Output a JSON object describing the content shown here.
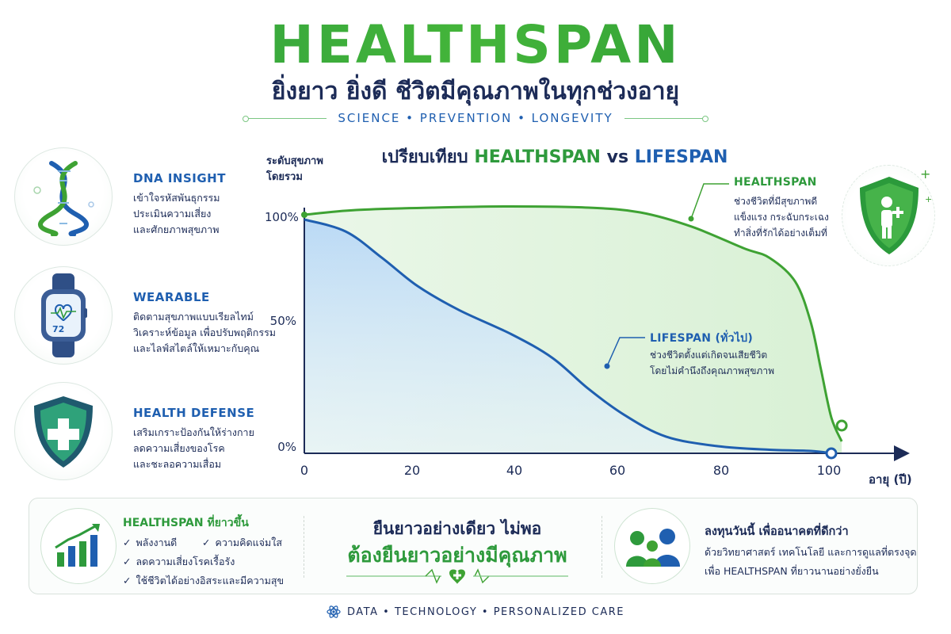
{
  "header": {
    "title": "HEALTHSPAN",
    "subtitle": "ยิ่งยาว ยิ่งดี  ชีวิตมีคุณภาพในทุกช่วงอายุ",
    "tagline": "SCIENCE • PREVENTION • LONGEVITY"
  },
  "features": [
    {
      "icon": "dna-icon",
      "title": "DNA INSIGHT",
      "lines": [
        "เข้าใจรหัสพันธุกรรม",
        "ประเมินความเสี่ยง",
        "และศักยภาพสุขภาพ"
      ]
    },
    {
      "icon": "smartwatch-icon",
      "title": "WEARABLE",
      "lines": [
        "ติดตามสุขภาพแบบเรียลไทม์",
        "วิเคราะห์ข้อมูล เพื่อปรับพฤติกรรม",
        "และไลฟ์สไตล์ให้เหมาะกับคุณ"
      ],
      "watch_value": "72"
    },
    {
      "icon": "shield-plus-icon",
      "title": "HEALTH DEFENSE",
      "lines": [
        "เสริมเกราะป้องกันให้ร่างกาย",
        "ลดความเสี่ยงของโรค",
        "และชะลอความเสื่อม"
      ]
    }
  ],
  "chart_title": {
    "prefix": "เปรียบเทียบ",
    "series_a": "HEALTHSPAN",
    "vs": "vs",
    "series_b": "LIFESPAN"
  },
  "chart_data": {
    "type": "line",
    "ylabel": "ระดับสุขภาพโดยรวม",
    "ylabel_lines": [
      "ระดับสุขภาพ",
      "โดยรวม"
    ],
    "xlabel": "อายุ (ปี)",
    "x_ticks": [
      "0",
      "20",
      "40",
      "60",
      "80",
      "100"
    ],
    "y_ticks": [
      "100%",
      "50%",
      "0%"
    ],
    "xlim": [
      0,
      104
    ],
    "ylim": [
      0,
      100
    ],
    "series": [
      {
        "name": "HEALTHSPAN",
        "color": "#3ea233",
        "points": [
          [
            0,
            100
          ],
          [
            10,
            102
          ],
          [
            25,
            103
          ],
          [
            40,
            103.5
          ],
          [
            55,
            103
          ],
          [
            65,
            101
          ],
          [
            75,
            95
          ],
          [
            85,
            86
          ],
          [
            90,
            82
          ],
          [
            95,
            72
          ],
          [
            98,
            55
          ],
          [
            100,
            35
          ],
          [
            102,
            15
          ],
          [
            104,
            5
          ]
        ]
      },
      {
        "name": "LIFESPAN (ทั่วไป)",
        "color": "#1f5fb0",
        "points": [
          [
            0,
            98
          ],
          [
            8,
            93
          ],
          [
            15,
            82
          ],
          [
            22,
            70
          ],
          [
            30,
            60
          ],
          [
            40,
            50
          ],
          [
            48,
            40
          ],
          [
            55,
            27
          ],
          [
            62,
            16
          ],
          [
            70,
            7
          ],
          [
            80,
            3
          ],
          [
            90,
            1.5
          ],
          [
            98,
            1
          ],
          [
            102,
            0
          ]
        ]
      }
    ],
    "annotations": [
      {
        "series": "HEALTHSPAN",
        "title": "HEALTHSPAN",
        "lines": [
          "ช่วงชีวิตที่มีสุขภาพดี",
          "แข็งแรง กระฉับกระเฉง",
          "ทำสิ่งที่รักได้อย่างเต็มที่"
        ]
      },
      {
        "series": "LIFESPAN",
        "title": "LIFESPAN (ทั่วไป)",
        "lines": [
          "ช่วงชีวิตตั้งแต่เกิดจนเสียชีวิต",
          "โดยไม่คำนึงถึงคุณภาพสุขภาพ"
        ]
      }
    ],
    "grid": false,
    "legend": "none"
  },
  "bottom": {
    "left": {
      "icon": "growth-chart-icon",
      "title": "HEALTHSPAN ที่ยาวขึ้น",
      "checks": [
        "พลังงานดี",
        "ความคิดแจ่มใส",
        "ลดความเสี่ยงโรคเรื้อรัง",
        "ใช้ชีวิตได้อย่างอิสระและมีความสุข"
      ]
    },
    "center": {
      "line1": "ยืนยาวอย่างเดียว ไม่พอ",
      "line2": "ต้องยืนยาวอย่างมีคุณภาพ",
      "icon": "heartbeat-icon"
    },
    "right": {
      "icon": "family-icon",
      "title": "ลงทุนวันนี้ เพื่ออนาคตที่ดีกว่า",
      "lines": [
        "ด้วยวิทยาศาสตร์ เทคโนโลยี และการดูแลที่ตรงจุด",
        "เพื่อ HEALTHSPAN ที่ยาวนานอย่างยั่งยืน"
      ]
    }
  },
  "footer": {
    "text": "DATA • TECHNOLOGY • PERSONALIZED CARE",
    "icon": "atom-icon"
  },
  "colors": {
    "green": "#2e9a3c",
    "blue": "#1f5fb0",
    "navy": "#1c2b57"
  }
}
